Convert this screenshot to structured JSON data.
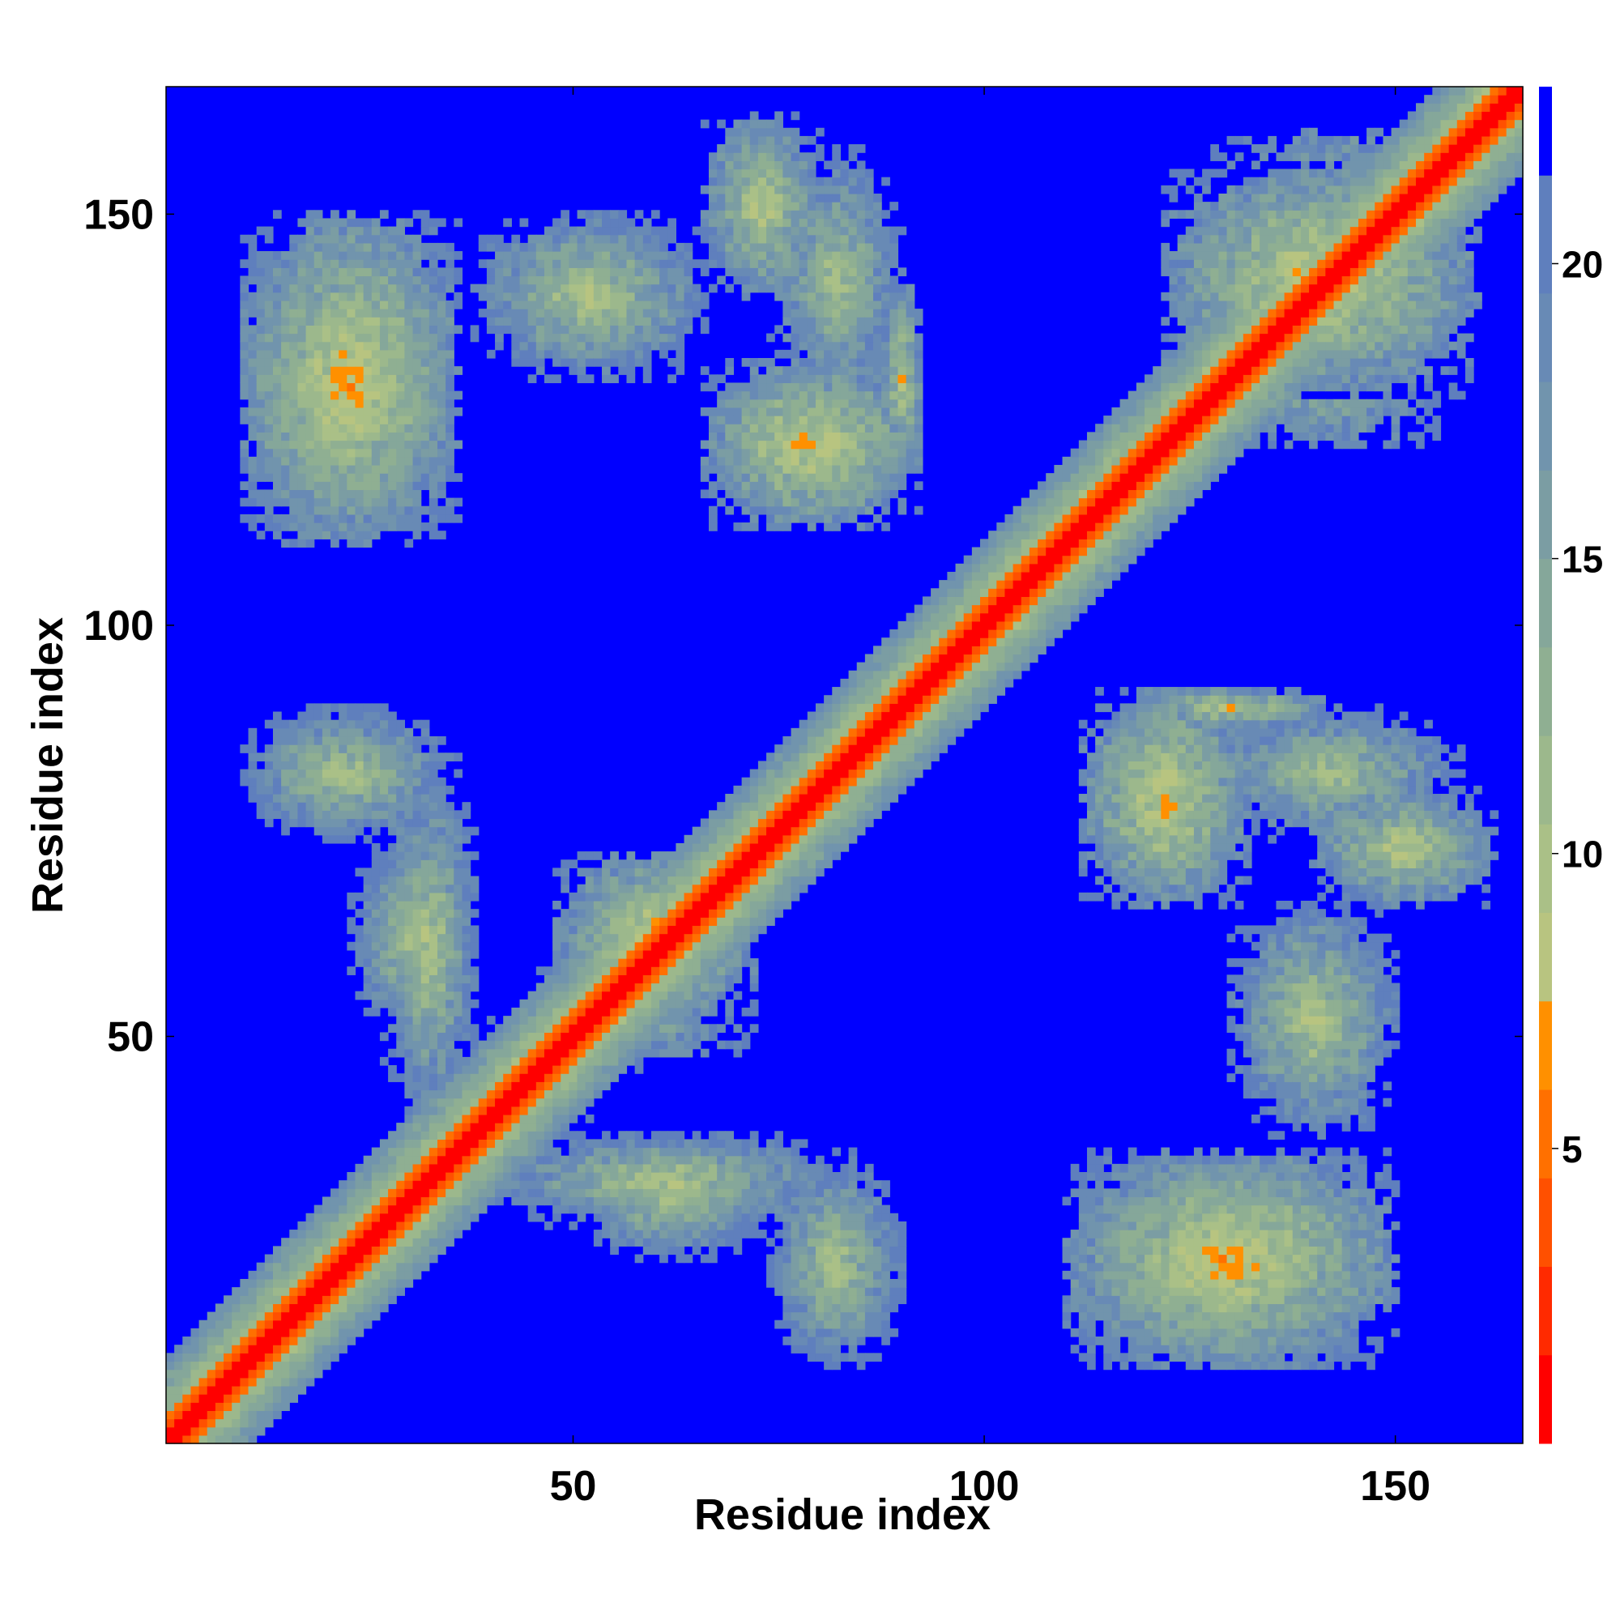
{
  "chart_data": {
    "type": "heatmap",
    "title": "",
    "xlabel": "Residue index",
    "ylabel": "Residue index",
    "n_residues": 165,
    "xlim": [
      1,
      165
    ],
    "ylim": [
      1,
      165
    ],
    "x_ticks": [
      50,
      100,
      150
    ],
    "y_ticks": [
      50,
      100,
      150
    ],
    "x_tick_labels": [
      "50",
      "100",
      "150"
    ],
    "y_tick_labels": [
      "50",
      "100",
      "150"
    ],
    "colorbar": {
      "range": [
        0,
        23
      ],
      "ticks": [
        5,
        10,
        15,
        20
      ],
      "tick_labels": [
        "5",
        "10",
        "15",
        "20"
      ],
      "levels": [
        {
          "from": 0.0,
          "to": 1.5,
          "color": "#ff0000"
        },
        {
          "from": 1.5,
          "to": 3.0,
          "color": "#ff2a00"
        },
        {
          "from": 3.0,
          "to": 4.5,
          "color": "#ff5000"
        },
        {
          "from": 4.5,
          "to": 6.0,
          "color": "#ff7000"
        },
        {
          "from": 6.0,
          "to": 7.5,
          "color": "#ff9000"
        },
        {
          "from": 7.5,
          "to": 9.0,
          "color": "#b8c480"
        },
        {
          "from": 9.0,
          "to": 10.5,
          "color": "#aac087"
        },
        {
          "from": 10.5,
          "to": 12.0,
          "color": "#9cb88c"
        },
        {
          "from": 12.0,
          "to": 13.5,
          "color": "#8faf92"
        },
        {
          "from": 13.5,
          "to": 15.0,
          "color": "#85a79a"
        },
        {
          "from": 15.0,
          "to": 16.5,
          "color": "#7b9da3"
        },
        {
          "from": 16.5,
          "to": 18.0,
          "color": "#7194ad"
        },
        {
          "from": 18.0,
          "to": 19.5,
          "color": "#688ab5"
        },
        {
          "from": 19.5,
          "to": 21.5,
          "color": "#5f7fbd"
        },
        {
          "from": 21.5,
          "to": 23.0,
          "color": "#0000ff"
        }
      ]
    },
    "background_value": 23,
    "contact_regions": [
      {
        "name": "main-diagonal",
        "band": "diagonal"
      },
      {
        "i": [
          10,
          35
        ],
        "j": [
          112,
          145
        ],
        "min_distance": 5
      },
      {
        "i": [
          38,
          66
        ],
        "j": [
          130,
          150
        ],
        "min_distance": 7
      },
      {
        "i": [
          66,
          80
        ],
        "j": [
          140,
          162
        ],
        "min_distance": 6
      },
      {
        "i": [
          66,
          92
        ],
        "j": [
          112,
          132
        ],
        "min_distance": 5
      },
      {
        "i": [
          10,
          36
        ],
        "j": [
          74,
          90
        ],
        "min_distance": 8
      },
      {
        "i": [
          23,
          38
        ],
        "j": [
          50,
          74
        ],
        "min_distance": 8
      },
      {
        "i": [
          40,
          58
        ],
        "j": [
          46,
          52
        ],
        "min_distance": 5
      },
      {
        "i": [
          48,
          72
        ],
        "j": [
          52,
          72
        ],
        "min_distance": 5
      },
      {
        "i": [
          40,
          82
        ],
        "j": [
          27,
          38
        ],
        "min_distance": 7
      },
      {
        "i": [
          74,
          90
        ],
        "j": [
          10,
          32
        ],
        "min_distance": 8
      },
      {
        "i": [
          110,
          150
        ],
        "j": [
          10,
          36
        ],
        "min_distance": 5
      },
      {
        "i": [
          126,
          158
        ],
        "j": [
          74,
          90
        ],
        "min_distance": 8
      },
      {
        "i": [
          118,
          142
        ],
        "j": [
          88,
          92
        ],
        "min_distance": 6
      },
      {
        "i": [
          122,
          160
        ],
        "j": [
          128,
          156
        ],
        "min_distance": 5
      }
    ]
  }
}
